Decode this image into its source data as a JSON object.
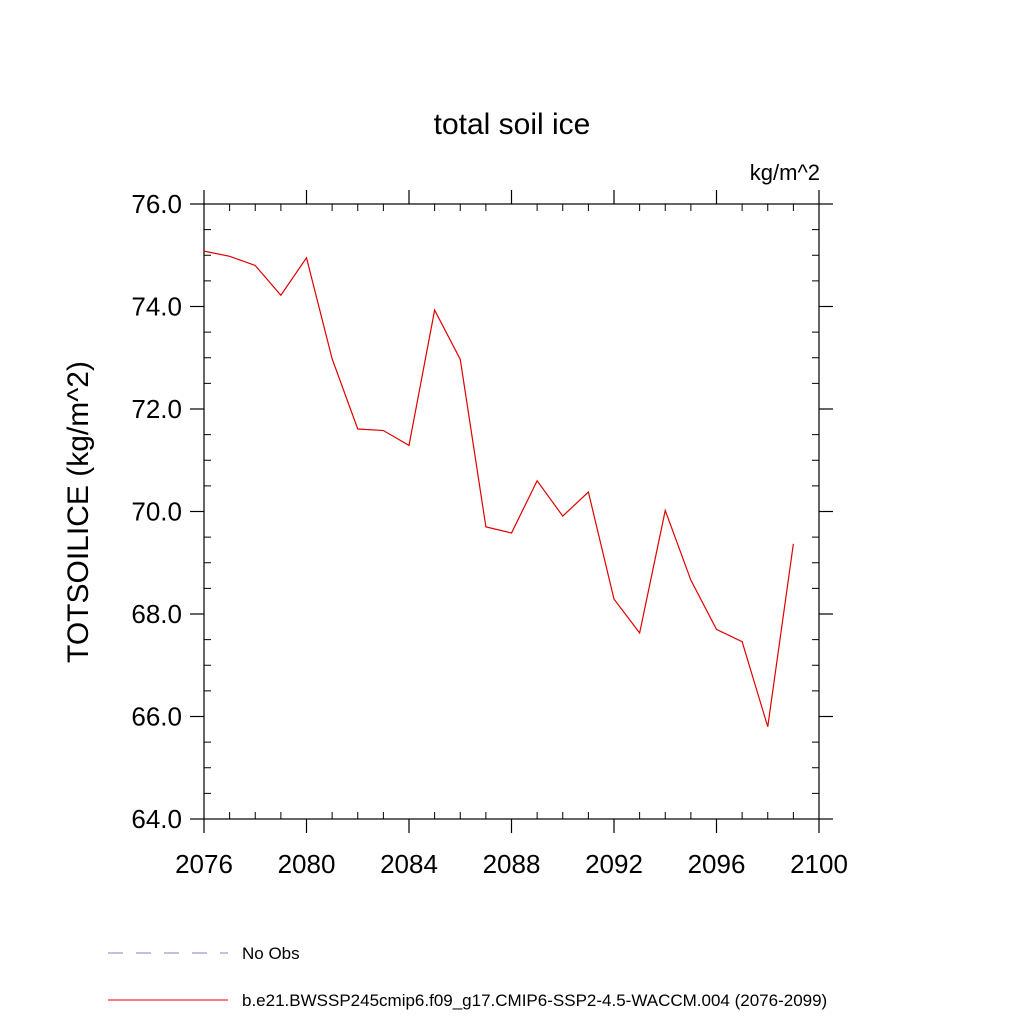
{
  "chart_data": {
    "type": "line",
    "title": "total soil ice",
    "units": "kg/m^2",
    "ylabel": "TOTSOILICE  (kg/m^2)",
    "xlabel": "",
    "xlim": [
      2076,
      2100
    ],
    "ylim": [
      64.0,
      76.0
    ],
    "x_ticks": [
      "2076",
      "2080",
      "2084",
      "2088",
      "2092",
      "2096",
      "2100"
    ],
    "y_ticks": [
      "64.0",
      "66.0",
      "68.0",
      "70.0",
      "72.0",
      "74.0",
      "76.0"
    ],
    "legend": [
      {
        "name": "No Obs",
        "color": "#8080c0",
        "style": "dashed"
      },
      {
        "name": "b.e21.BWSSP245cmip6.f09_g17.CMIP6-SSP2-4.5-WACCM.004 (2076-2099)",
        "color": "#e00000",
        "style": "solid"
      }
    ],
    "series": [
      {
        "name": "b.e21.BWSSP245cmip6.f09_g17.CMIP6-SSP2-4.5-WACCM.004 (2076-2099)",
        "color": "#e00000",
        "x": [
          2076,
          2077,
          2078,
          2079,
          2080,
          2081,
          2082,
          2083,
          2084,
          2085,
          2086,
          2087,
          2088,
          2089,
          2090,
          2091,
          2092,
          2093,
          2094,
          2095,
          2096,
          2097,
          2098,
          2099
        ],
        "y": [
          75.08,
          74.98,
          74.8,
          74.22,
          74.95,
          72.98,
          71.61,
          71.58,
          71.29,
          73.93,
          72.97,
          69.7,
          69.58,
          70.6,
          69.91,
          70.38,
          68.29,
          67.63,
          70.02,
          68.66,
          67.7,
          67.46,
          65.8,
          69.37
        ]
      }
    ]
  }
}
